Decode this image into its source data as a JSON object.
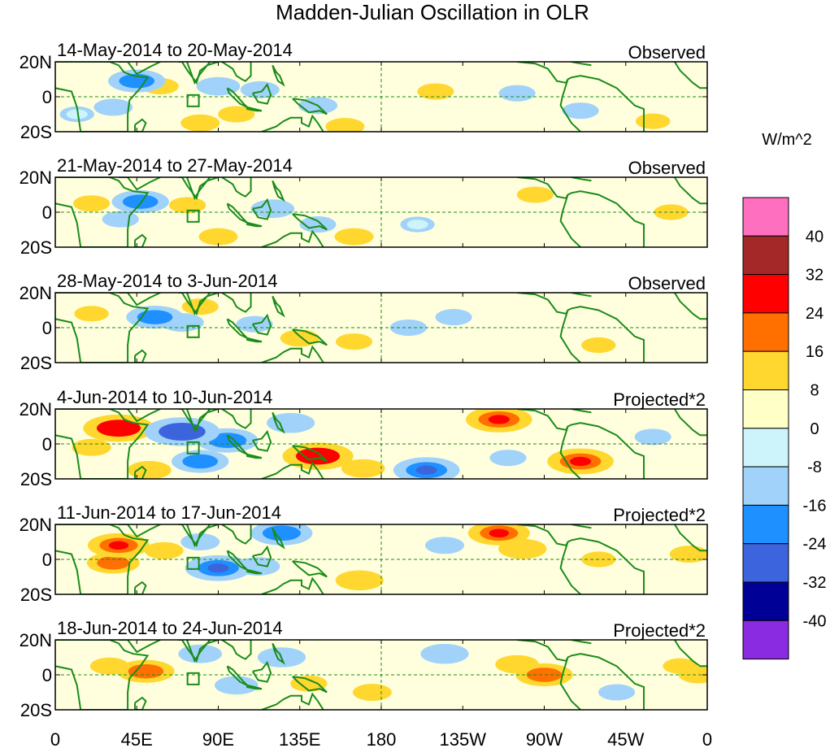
{
  "chart_data": {
    "type": "heatmap",
    "title": "Madden-Julian Oscillation in OLR",
    "variable": "OLR anomaly",
    "colorbar": {
      "units": "W/m^2",
      "levels": [
        40,
        32,
        24,
        16,
        8,
        0,
        -8,
        -16,
        -24,
        -32,
        -40
      ],
      "labels": [
        "40",
        "32",
        "24",
        "16",
        "8",
        "0",
        "-8",
        "-16",
        "-24",
        "-32",
        "-40"
      ],
      "colors": [
        "#ff6fc0",
        "#a52828",
        "#ff0000",
        "#ff7000",
        "#ffd72e",
        "#ffffc8",
        "#cdf4fa",
        "#a0d2fa",
        "#1e90ff",
        "#3c64dc",
        "#000096",
        "#8a2be2"
      ]
    },
    "x_ticks": [
      "0",
      "45E",
      "90E",
      "135E",
      "180",
      "135W",
      "90W",
      "45W",
      "0"
    ],
    "x_range_deg": [
      0,
      360
    ],
    "y_ticks": [
      "20N",
      "0",
      "20S"
    ],
    "y_range_deg": [
      -20,
      20
    ],
    "reference_lines": [
      "equator",
      "180"
    ],
    "panels": [
      {
        "dates": "14-May-2014 to 20-May-2014",
        "kind": "Observed",
        "anomalies": [
          {
            "lon": 45,
            "lat": 9,
            "value": -18
          },
          {
            "lon": 32,
            "lat": -6,
            "value": -10
          },
          {
            "lon": 58,
            "lat": 6,
            "value": 9
          },
          {
            "lon": 90,
            "lat": 6,
            "value": -12
          },
          {
            "lon": 80,
            "lat": -15,
            "value": 10
          },
          {
            "lon": 100,
            "lat": -10,
            "value": 9
          },
          {
            "lon": 113,
            "lat": 4,
            "value": -10
          },
          {
            "lon": 145,
            "lat": -5,
            "value": -10
          },
          {
            "lon": 160,
            "lat": -17,
            "value": 10
          },
          {
            "lon": 210,
            "lat": 3,
            "value": 9
          },
          {
            "lon": 255,
            "lat": 2,
            "value": -9
          },
          {
            "lon": 290,
            "lat": -8,
            "value": -9
          },
          {
            "lon": 330,
            "lat": -14,
            "value": 8
          },
          {
            "lon": 12,
            "lat": -10,
            "value": -8
          }
        ]
      },
      {
        "dates": "21-May-2014 to 27-May-2014",
        "kind": "Observed",
        "anomalies": [
          {
            "lon": 20,
            "lat": 5,
            "value": 9
          },
          {
            "lon": 47,
            "lat": 6,
            "value": -18
          },
          {
            "lon": 36,
            "lat": -4,
            "value": -9
          },
          {
            "lon": 73,
            "lat": 4,
            "value": 9
          },
          {
            "lon": 120,
            "lat": 2,
            "value": -12
          },
          {
            "lon": 90,
            "lat": -14,
            "value": 10
          },
          {
            "lon": 145,
            "lat": -7,
            "value": -9
          },
          {
            "lon": 165,
            "lat": -14,
            "value": 10
          },
          {
            "lon": 200,
            "lat": -7,
            "value": -8
          },
          {
            "lon": 265,
            "lat": 10,
            "value": 9
          },
          {
            "lon": 340,
            "lat": 0,
            "value": 8
          }
        ]
      },
      {
        "dates": "28-May-2014 to 3-Jun-2014",
        "kind": "Observed",
        "anomalies": [
          {
            "lon": 20,
            "lat": 8,
            "value": 8
          },
          {
            "lon": 55,
            "lat": 6,
            "value": -18
          },
          {
            "lon": 70,
            "lat": 3,
            "value": -12
          },
          {
            "lon": 80,
            "lat": 12,
            "value": 9
          },
          {
            "lon": 110,
            "lat": 2,
            "value": -9
          },
          {
            "lon": 135,
            "lat": -6,
            "value": 10
          },
          {
            "lon": 165,
            "lat": -8,
            "value": 9
          },
          {
            "lon": 195,
            "lat": 0,
            "value": -9
          },
          {
            "lon": 220,
            "lat": 6,
            "value": -9
          },
          {
            "lon": 300,
            "lat": -10,
            "value": 8
          }
        ]
      },
      {
        "dates": "4-Jun-2014 to 10-Jun-2014",
        "kind": "Projected*2",
        "anomalies": [
          {
            "lon": 35,
            "lat": 9,
            "value": 24
          },
          {
            "lon": 20,
            "lat": -2,
            "value": 10
          },
          {
            "lon": 52,
            "lat": -15,
            "value": 12
          },
          {
            "lon": 70,
            "lat": 7,
            "value": -26
          },
          {
            "lon": 95,
            "lat": 2,
            "value": -20
          },
          {
            "lon": 80,
            "lat": -10,
            "value": -18
          },
          {
            "lon": 130,
            "lat": 12,
            "value": -14
          },
          {
            "lon": 145,
            "lat": -7,
            "value": 24
          },
          {
            "lon": 170,
            "lat": -14,
            "value": 12
          },
          {
            "lon": 205,
            "lat": -15,
            "value": -22
          },
          {
            "lon": 245,
            "lat": 14,
            "value": 22
          },
          {
            "lon": 290,
            "lat": -10,
            "value": 22
          },
          {
            "lon": 250,
            "lat": -8,
            "value": -9
          },
          {
            "lon": 330,
            "lat": 4,
            "value": -9
          }
        ]
      },
      {
        "dates": "11-Jun-2014 to 17-Jun-2014",
        "kind": "Projected*2",
        "anomalies": [
          {
            "lon": 35,
            "lat": 8,
            "value": 20
          },
          {
            "lon": 32,
            "lat": -2,
            "value": 16
          },
          {
            "lon": 60,
            "lat": 5,
            "value": 10
          },
          {
            "lon": 80,
            "lat": 10,
            "value": -10
          },
          {
            "lon": 90,
            "lat": -5,
            "value": -22
          },
          {
            "lon": 112,
            "lat": -4,
            "value": -12
          },
          {
            "lon": 125,
            "lat": 15,
            "value": -20
          },
          {
            "lon": 168,
            "lat": -12,
            "value": 14
          },
          {
            "lon": 215,
            "lat": 8,
            "value": -10
          },
          {
            "lon": 245,
            "lat": 15,
            "value": 20
          },
          {
            "lon": 258,
            "lat": 6,
            "value": 14
          },
          {
            "lon": 300,
            "lat": 0,
            "value": 8
          },
          {
            "lon": 350,
            "lat": 3,
            "value": 10
          }
        ]
      },
      {
        "dates": "18-Jun-2014 to 24-Jun-2014",
        "kind": "Projected*2",
        "anomalies": [
          {
            "lon": 50,
            "lat": 2,
            "value": 18
          },
          {
            "lon": 30,
            "lat": 5,
            "value": 10
          },
          {
            "lon": 80,
            "lat": 12,
            "value": -12
          },
          {
            "lon": 100,
            "lat": -6,
            "value": -12
          },
          {
            "lon": 125,
            "lat": 10,
            "value": -14
          },
          {
            "lon": 140,
            "lat": -5,
            "value": 9
          },
          {
            "lon": 175,
            "lat": -10,
            "value": 10
          },
          {
            "lon": 215,
            "lat": 12,
            "value": -14
          },
          {
            "lon": 255,
            "lat": 6,
            "value": 12
          },
          {
            "lon": 270,
            "lat": 0,
            "value": 18
          },
          {
            "lon": 310,
            "lat": -10,
            "value": -9
          },
          {
            "lon": 345,
            "lat": 5,
            "value": 8
          },
          {
            "lon": 355,
            "lat": 0,
            "value": 10
          }
        ]
      }
    ]
  }
}
